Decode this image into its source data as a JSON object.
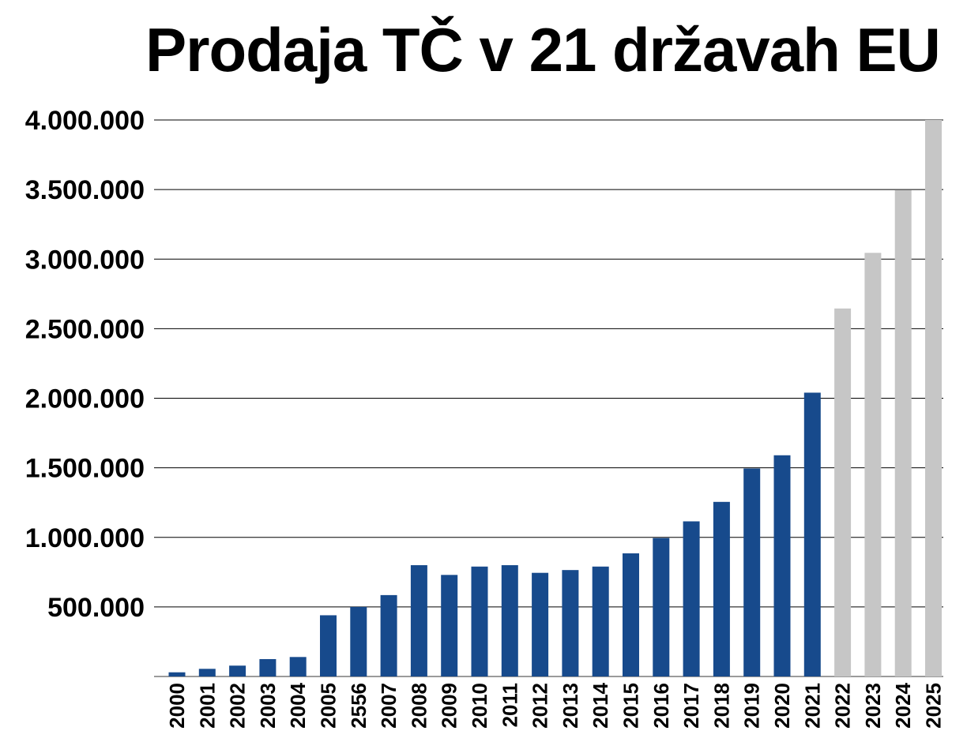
{
  "chart_data": {
    "type": "bar",
    "title": "Prodaja TČ v 21 državah EU",
    "xlabel": "",
    "ylabel": "",
    "ylim": [
      0,
      4000000
    ],
    "yticks": [
      "500.000",
      "1.000.000",
      "1.500.000",
      "2.000.000",
      "2.500.000",
      "3.000.000",
      "3.500.000",
      "4.000.000"
    ],
    "ytick_values": [
      500000,
      1000000,
      1500000,
      2000000,
      2500000,
      3000000,
      3500000,
      4000000
    ],
    "grid": true,
    "categories": [
      "2000",
      "2001",
      "2002",
      "2003",
      "2004",
      "2005",
      "2556",
      "2007",
      "2008",
      "2009",
      "2010",
      "2011",
      "2012",
      "2013",
      "2014",
      "2015",
      "2016",
      "2017",
      "2018",
      "2019",
      "2020",
      "2021",
      "2022",
      "2023",
      "2024",
      "2025"
    ],
    "values": [
      30000,
      55000,
      78000,
      125000,
      140000,
      440000,
      500000,
      585000,
      800000,
      730000,
      790000,
      800000,
      745000,
      765000,
      790000,
      885000,
      995000,
      1115000,
      1255000,
      1495000,
      1590000,
      2040000,
      2645000,
      3045000,
      3495000,
      4000000
    ],
    "bar_colors": [
      "#174a8c",
      "#174a8c",
      "#174a8c",
      "#174a8c",
      "#174a8c",
      "#174a8c",
      "#174a8c",
      "#174a8c",
      "#174a8c",
      "#174a8c",
      "#174a8c",
      "#174a8c",
      "#174a8c",
      "#174a8c",
      "#174a8c",
      "#174a8c",
      "#174a8c",
      "#174a8c",
      "#174a8c",
      "#174a8c",
      "#174a8c",
      "#174a8c",
      "#c6c6c6",
      "#c6c6c6",
      "#c6c6c6",
      "#c6c6c6"
    ],
    "colors": {
      "actual": "#174a8c",
      "forecast": "#c6c6c6",
      "grid": "#000000"
    }
  }
}
